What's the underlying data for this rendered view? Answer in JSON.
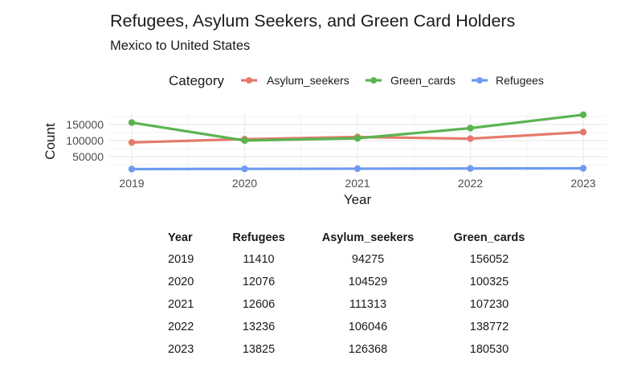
{
  "chart_data": {
    "type": "line",
    "title": "Refugees, Asylum Seekers, and Green Card Holders",
    "subtitle": "Mexico to United States",
    "xlabel": "Year",
    "ylabel": "Count",
    "x": [
      2019,
      2020,
      2021,
      2022,
      2023
    ],
    "x_tick_labels": [
      "2019",
      "2020",
      "2021",
      "2022",
      "2023"
    ],
    "y_ticks": [
      50000,
      100000,
      150000
    ],
    "y_tick_labels": [
      "50000",
      "100000",
      "150000"
    ],
    "ylim": [
      0,
      187500
    ],
    "xlim": [
      2018.8,
      2023.2
    ],
    "grid": true,
    "legend": {
      "title": "Category",
      "placement": "top",
      "entries": [
        "Asylum_seekers",
        "Green_cards",
        "Refugees"
      ]
    },
    "series": [
      {
        "name": "Asylum_seekers",
        "color": "#E57A6B",
        "values": [
          94275,
          104529,
          111313,
          106046,
          126368
        ]
      },
      {
        "name": "Green_cards",
        "color": "#5BB450",
        "values": [
          156052,
          100325,
          107230,
          138772,
          180530
        ]
      },
      {
        "name": "Refugees",
        "color": "#6F9BF0",
        "values": [
          11410,
          12076,
          12606,
          13236,
          13825
        ]
      }
    ]
  },
  "table": {
    "headers": [
      "Year",
      "Refugees",
      "Asylum_seekers",
      "Green_cards"
    ],
    "rows": [
      [
        "2019",
        "11410",
        "94275",
        "156052"
      ],
      [
        "2020",
        "12076",
        "104529",
        "100325"
      ],
      [
        "2021",
        "12606",
        "111313",
        "107230"
      ],
      [
        "2022",
        "13236",
        "106046",
        "138772"
      ],
      [
        "2023",
        "13825",
        "126368",
        "180530"
      ]
    ]
  }
}
